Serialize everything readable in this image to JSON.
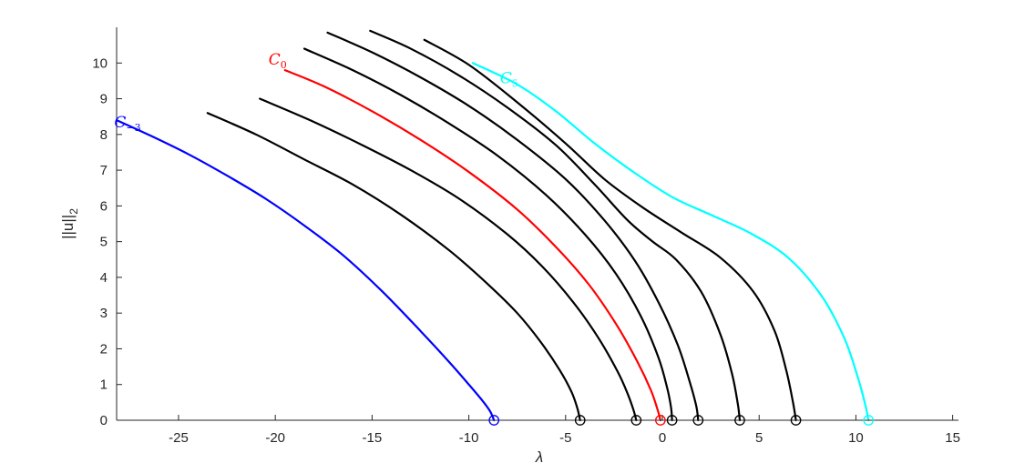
{
  "chart_data": {
    "type": "line",
    "xlabel": "λ",
    "ylabel": "||u||",
    "ylabel_subscript": "2",
    "xlim": [
      -28.2,
      15.3
    ],
    "ylim": [
      0,
      11
    ],
    "xticks": [
      -25,
      -20,
      -15,
      -10,
      -5,
      0,
      5,
      10,
      15
    ],
    "yticks": [
      0,
      1,
      2,
      3,
      4,
      5,
      6,
      7,
      8,
      9,
      10
    ],
    "xtick_labels": [
      "-25",
      "-20",
      "-15",
      "-10",
      "-5",
      "0",
      "5",
      "10",
      "15"
    ],
    "ytick_labels": [
      "0",
      "1",
      "2",
      "3",
      "4",
      "5",
      "6",
      "7",
      "8",
      "9",
      "10"
    ],
    "grid": false,
    "series": [
      {
        "name": "C",
        "name_subscript": "−3",
        "color": "#0000ff",
        "marker_at_zero": true,
        "x": [
          -28.2,
          -26.5,
          -24.5,
          -22.5,
          -20.5,
          -18.5,
          -16.5,
          -14.5,
          -12.5,
          -11.0,
          -10.0,
          -9.3,
          -8.9,
          -8.7
        ],
        "y": [
          8.4,
          7.98,
          7.45,
          6.85,
          6.2,
          5.45,
          4.62,
          3.62,
          2.5,
          1.62,
          1.0,
          0.55,
          0.25,
          0.0
        ]
      },
      {
        "name": "",
        "color": "#000000",
        "marker_at_zero": true,
        "x": [
          -23.5,
          -21.0,
          -18.5,
          -16.0,
          -13.5,
          -11.0,
          -9.0,
          -7.5,
          -6.3,
          -5.3,
          -4.7,
          -4.4,
          -4.25
        ],
        "y": [
          8.6,
          8.0,
          7.3,
          6.6,
          5.75,
          4.75,
          3.8,
          3.0,
          2.2,
          1.4,
          0.8,
          0.35,
          0.0
        ]
      },
      {
        "name": "",
        "color": "#000000",
        "marker_at_zero": true,
        "x": [
          -20.8,
          -18.0,
          -15.5,
          -13.0,
          -10.5,
          -8.0,
          -6.2,
          -4.6,
          -3.3,
          -2.3,
          -1.8,
          -1.5,
          -1.35
        ],
        "y": [
          9.0,
          8.35,
          7.7,
          7.0,
          6.2,
          5.2,
          4.3,
          3.3,
          2.3,
          1.35,
          0.75,
          0.3,
          0.0
        ]
      },
      {
        "name": "C",
        "name_subscript": "0",
        "color": "#ff0000",
        "marker_at_zero": true,
        "x": [
          -19.5,
          -17.5,
          -15.0,
          -12.5,
          -10.0,
          -7.5,
          -5.5,
          -3.8,
          -2.4,
          -1.3,
          -0.6,
          -0.25,
          -0.1
        ],
        "y": [
          9.8,
          9.35,
          8.65,
          7.85,
          6.95,
          5.9,
          4.85,
          3.8,
          2.7,
          1.65,
          0.85,
          0.3,
          0.0
        ]
      },
      {
        "name": "",
        "color": "#000000",
        "marker_at_zero": true,
        "x": [
          -18.5,
          -16.0,
          -13.5,
          -11.0,
          -8.5,
          -6.0,
          -4.0,
          -2.4,
          -1.1,
          -0.2,
          0.25,
          0.45,
          0.5
        ],
        "y": [
          10.4,
          9.8,
          9.1,
          8.3,
          7.4,
          6.3,
          5.2,
          4.1,
          2.9,
          1.75,
          0.9,
          0.35,
          0.0
        ]
      },
      {
        "name": "",
        "color": "#000000",
        "marker_at_zero": true,
        "x": [
          -17.3,
          -15.0,
          -12.5,
          -10.0,
          -7.5,
          -5.0,
          -3.0,
          -1.4,
          -0.2,
          0.8,
          1.4,
          1.75,
          1.85
        ],
        "y": [
          10.85,
          10.3,
          9.6,
          8.8,
          7.85,
          6.75,
          5.6,
          4.45,
          3.3,
          2.1,
          1.1,
          0.4,
          0.0
        ]
      },
      {
        "name": "",
        "color": "#000000",
        "marker_at_zero": true,
        "x": [
          -15.1,
          -13.0,
          -10.5,
          -8.0,
          -5.5,
          -3.5,
          -1.8,
          -0.5,
          0.7,
          2.0,
          3.0,
          3.6,
          3.9,
          4.0
        ],
        "y": [
          10.9,
          10.4,
          9.65,
          8.75,
          7.7,
          6.6,
          5.6,
          5.0,
          4.5,
          3.6,
          2.4,
          1.3,
          0.45,
          0.0
        ]
      },
      {
        "name": "",
        "color": "#000000",
        "marker_at_zero": true,
        "x": [
          -12.3,
          -10.0,
          -7.5,
          -5.0,
          -3.0,
          -1.0,
          1.0,
          3.0,
          4.7,
          5.8,
          6.4,
          6.75,
          6.9
        ],
        "y": [
          10.65,
          9.95,
          8.9,
          7.75,
          6.75,
          5.95,
          5.25,
          4.55,
          3.6,
          2.5,
          1.4,
          0.5,
          0.0
        ]
      },
      {
        "name": "C",
        "name_subscript": "5",
        "color": "#00ffff",
        "marker_at_zero": true,
        "x": [
          -9.8,
          -7.5,
          -5.5,
          -3.5,
          -1.5,
          0.5,
          2.5,
          4.5,
          6.5,
          8.2,
          9.4,
          10.1,
          10.5,
          10.65
        ],
        "y": [
          10.0,
          9.4,
          8.65,
          7.75,
          6.95,
          6.25,
          5.75,
          5.25,
          4.55,
          3.5,
          2.3,
          1.2,
          0.4,
          0.0
        ]
      }
    ]
  }
}
